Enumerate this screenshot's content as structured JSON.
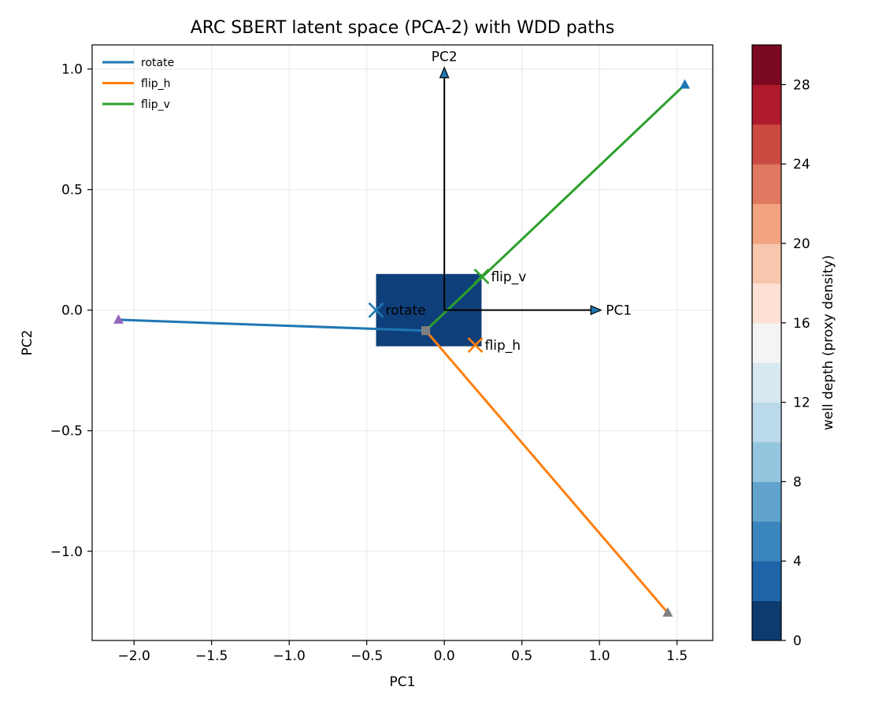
{
  "chart_data": {
    "type": "line",
    "title": "ARC SBERT latent space (PCA-2) with WDD paths",
    "xlabel": "PC1",
    "ylabel": "PC2",
    "xlim": [
      -2.27,
      1.73
    ],
    "ylim": [
      -1.37,
      1.1
    ],
    "xticks": [
      -2.0,
      -1.5,
      -1.0,
      -0.5,
      0.0,
      0.5,
      1.0,
      1.5
    ],
    "xtick_labels": [
      "−2.0",
      "−1.5",
      "−1.0",
      "−0.5",
      "0.0",
      "0.5",
      "1.0",
      "1.5"
    ],
    "yticks": [
      1.0,
      0.5,
      0.0,
      -0.5,
      -1.0
    ],
    "ytick_labels": [
      "1.0",
      "0.5",
      "0.0",
      "−0.5",
      "−1.0"
    ],
    "grid": true,
    "legend_position": "top-left",
    "background_cell": {
      "x": [
        -0.44,
        0.24
      ],
      "y": [
        -0.15,
        0.15
      ],
      "value": 0,
      "color": "#0f3f7a"
    },
    "series": [
      {
        "name": "rotate",
        "color": "#1f77b4",
        "points": [
          [
            -2.1,
            -0.04
          ],
          [
            -0.12,
            -0.085
          ]
        ],
        "start_marker_color": "#9467bd",
        "end_marker_color": "#7f7f7f"
      },
      {
        "name": "flip_h",
        "color": "#ff7f0e",
        "points": [
          [
            1.44,
            -1.255
          ],
          [
            -0.12,
            -0.085
          ]
        ],
        "start_marker_color": "#7f7f7f",
        "end_marker_color": "#7f7f7f"
      },
      {
        "name": "flip_v",
        "color": "#2ca02c",
        "points": [
          [
            1.55,
            0.935
          ],
          [
            -0.12,
            -0.085
          ]
        ],
        "start_marker_color": "#1f77b4",
        "end_marker_color": "#7f7f7f"
      }
    ],
    "centroids": [
      {
        "label": "rotate",
        "x": -0.44,
        "y": 0.0,
        "color": "#1f77b4"
      },
      {
        "label": "flip_v",
        "x": 0.24,
        "y": 0.14,
        "color": "#2ca02c"
      },
      {
        "label": "flip_h",
        "x": 0.2,
        "y": -0.145,
        "color": "#ff7f0e"
      }
    ],
    "pc_arrows": [
      {
        "label": "PC1",
        "dx": 1.0,
        "dy": 0.0
      },
      {
        "label": "PC2",
        "dx": 0.0,
        "dy": 1.0
      }
    ],
    "colorbar": {
      "label": "well depth (proxy density)",
      "range": [
        0,
        30
      ],
      "ticks": [
        0,
        4,
        8,
        12,
        16,
        20,
        24,
        28
      ],
      "colors": [
        "#0d3a6f",
        "#1f63a8",
        "#3a85bd",
        "#60a4cd",
        "#94c5de",
        "#bad9ea",
        "#d8e8f1",
        "#f4f4f3",
        "#fce1d4",
        "#f8c6ad",
        "#f2a37f",
        "#df7a61",
        "#cb4a42",
        "#b01a2d",
        "#7b0922"
      ]
    }
  }
}
